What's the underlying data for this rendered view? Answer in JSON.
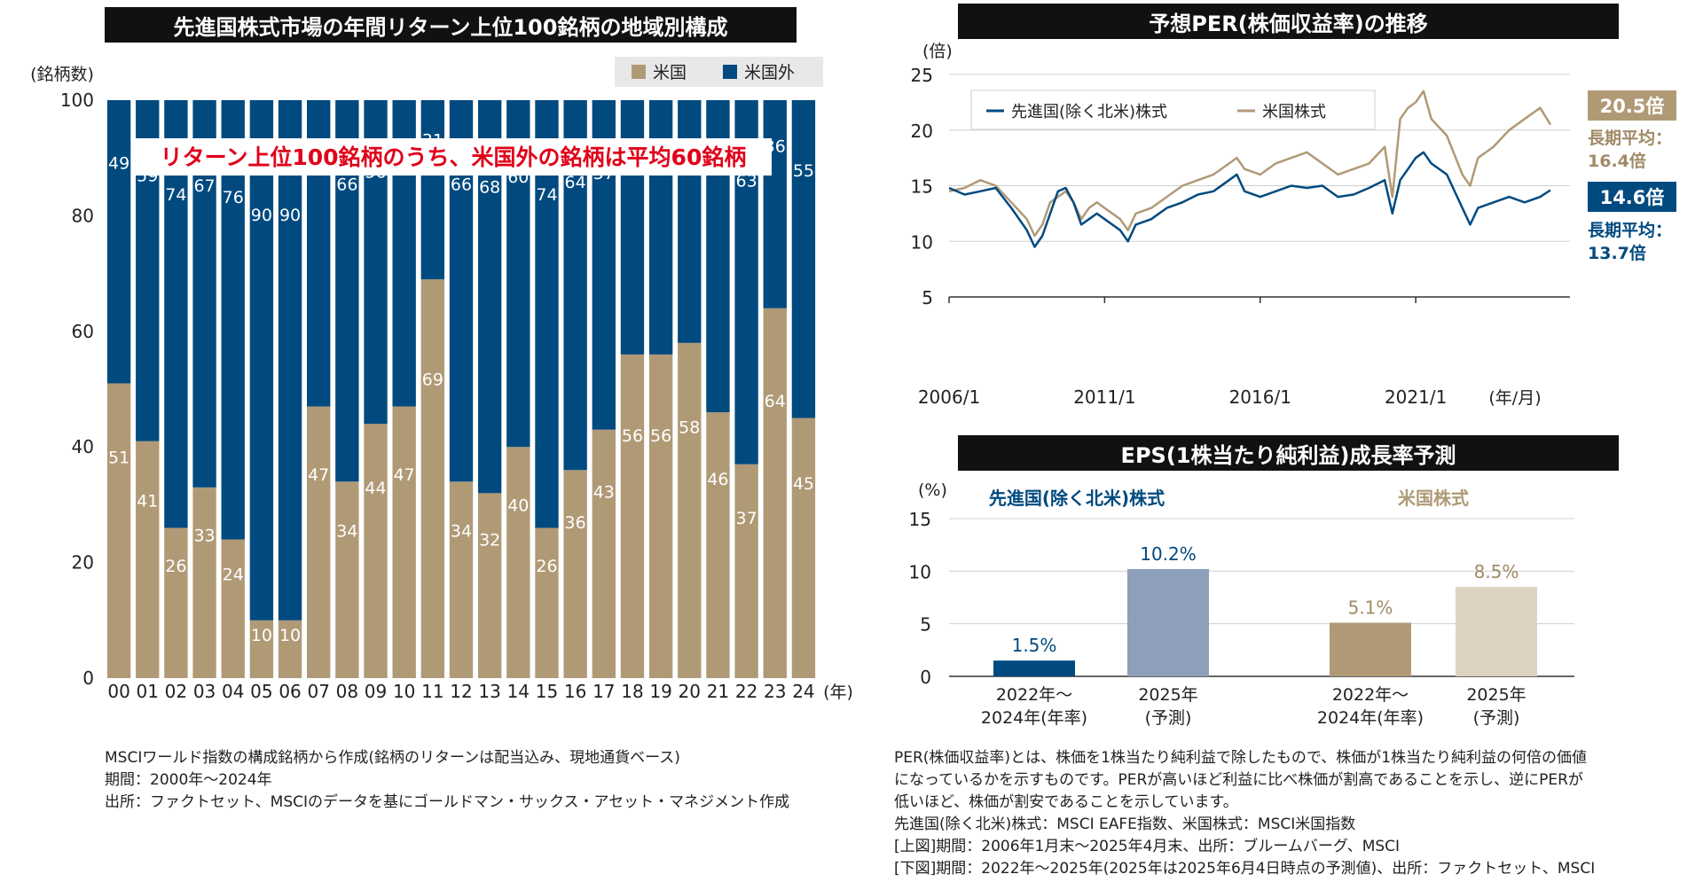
{
  "left": {
    "title": "先進国株式市場の年間リターン上位100銘柄の地域別構成",
    "y_unit": "(銘柄数)",
    "x_unit": "(年)",
    "annotation": "リターン上位100銘柄のうち、米国外の銘柄は平均60銘柄"
  },
  "per": {
    "title": "予想PER(株価収益率)の推移",
    "y_unit": "(倍)",
    "x_unit": "(年/月)",
    "us_badge": "20.5倍",
    "us_avg_label": "長期平均：",
    "us_avg_value": "16.4倍",
    "dev_badge": "14.6倍",
    "dev_avg_label": "長期平均：",
    "dev_avg_value": "13.7倍"
  },
  "eps": {
    "title": "EPS(1株当たり純利益)成長率予測",
    "y_unit": "(%)",
    "group1": "先進国(除く北米)株式",
    "group2": "米国株式",
    "cat1_line1": "2022年〜",
    "cat1_line2": "2024年(年率)",
    "cat2_line1": "2025年",
    "cat2_line2": "(予測)"
  },
  "notes_left": [
    "MSCIワールド指数の構成銘柄から作成(銘柄のリターンは配当込み、現地通貨ベース)",
    "期間：2000年〜2024年",
    "出所：ファクトセット、MSCIのデータを基にゴールドマン・サックス・アセット・マネジメント作成"
  ],
  "notes_right": [
    "PER(株価収益率)とは、株価を1株当たり純利益で除したもので、株価が1株当たり純利益の何倍の価値",
    "になっているかを示すものです。PERが高いほど利益に比べ株価が割高であることを示し、逆にPERが",
    "低いほど、株価が割安であることを示しています。",
    "先進国(除く北米)株式：MSCI EAFE指数、米国株式：MSCI米国指数",
    "[上図]期間：2006年1月末〜2025年4月末、出所：ブルームバーグ、MSCI",
    "[下図]期間：2022年〜2025年(2025年は2025年6月4日時点の予測値)、出所：ファクトセット、MSCI"
  ],
  "colors": {
    "us": "#b09a76",
    "non_us": "#004a7f",
    "annotation_red": "#e0001a",
    "eps_dev_2025": "#8e9fba",
    "eps_us_2025": "#dcd3c1"
  },
  "chart_data": [
    {
      "type": "bar",
      "stacked": true,
      "title": "先進国株式市場の年間リターン上位100銘柄の地域別構成",
      "ylabel": "(銘柄数)",
      "xlabel": "(年)",
      "ylim": [
        0,
        100
      ],
      "yticks": [
        0,
        20,
        40,
        60,
        80,
        100
      ],
      "categories": [
        "00",
        "01",
        "02",
        "03",
        "04",
        "05",
        "06",
        "07",
        "08",
        "09",
        "10",
        "11",
        "12",
        "13",
        "14",
        "15",
        "16",
        "17",
        "18",
        "19",
        "20",
        "21",
        "22",
        "23",
        "24"
      ],
      "series": [
        {
          "name": "米国",
          "values": [
            51,
            41,
            26,
            33,
            24,
            10,
            10,
            47,
            34,
            44,
            47,
            69,
            34,
            32,
            40,
            26,
            36,
            43,
            56,
            56,
            58,
            46,
            37,
            64,
            45
          ]
        },
        {
          "name": "米国外",
          "values": [
            49,
            59,
            74,
            67,
            76,
            90,
            90,
            53,
            66,
            56,
            53,
            31,
            66,
            68,
            60,
            74,
            64,
            57,
            44,
            44,
            42,
            54,
            63,
            36,
            55
          ]
        }
      ],
      "legend": "top-right"
    },
    {
      "type": "line",
      "title": "予想PER(株価収益率)の推移",
      "ylabel": "(倍)",
      "xlabel": "(年/月)",
      "ylim": [
        5,
        25
      ],
      "yticks": [
        5,
        10,
        15,
        20,
        25
      ],
      "xlim": [
        2006.0,
        2025.33
      ],
      "xticks": [
        2006,
        2011,
        2016,
        2021
      ],
      "xtick_labels": [
        "2006/1",
        "2011/1",
        "2016/1",
        "2021/1"
      ],
      "legend": "top-left",
      "series": [
        {
          "name": "先進国(除く北米)株式",
          "x": [
            2006.0,
            2006.5,
            2007.0,
            2007.5,
            2008.0,
            2008.5,
            2008.75,
            2009.0,
            2009.25,
            2009.5,
            2009.75,
            2010.0,
            2010.25,
            2010.5,
            2010.75,
            2011.0,
            2011.5,
            2011.75,
            2012.0,
            2012.5,
            2013.0,
            2013.5,
            2014.0,
            2014.5,
            2015.0,
            2015.25,
            2015.5,
            2016.0,
            2016.5,
            2017.0,
            2017.5,
            2018.0,
            2018.5,
            2019.0,
            2019.5,
            2020.0,
            2020.25,
            2020.5,
            2020.75,
            2021.0,
            2021.25,
            2021.5,
            2022.0,
            2022.5,
            2022.75,
            2023.0,
            2023.5,
            2024.0,
            2024.5,
            2025.0,
            2025.33
          ],
          "y": [
            14.8,
            14.2,
            14.5,
            14.8,
            13.0,
            11.0,
            9.5,
            10.5,
            12.5,
            14.5,
            14.8,
            13.5,
            11.5,
            12.0,
            12.5,
            12.0,
            11.0,
            10.0,
            11.5,
            12.0,
            13.0,
            13.5,
            14.2,
            14.5,
            15.5,
            16.0,
            14.5,
            14.0,
            14.5,
            15.0,
            14.8,
            15.0,
            14.0,
            14.2,
            14.8,
            15.5,
            12.5,
            15.5,
            16.5,
            17.5,
            18.0,
            17.0,
            16.0,
            13.0,
            11.5,
            13.0,
            13.5,
            14.0,
            13.5,
            14.0,
            14.6
          ]
        },
        {
          "name": "米国株式",
          "x": [
            2006.0,
            2006.5,
            2007.0,
            2007.5,
            2008.0,
            2008.5,
            2008.75,
            2009.0,
            2009.25,
            2009.5,
            2009.75,
            2010.0,
            2010.25,
            2010.5,
            2010.75,
            2011.0,
            2011.5,
            2011.75,
            2012.0,
            2012.5,
            2013.0,
            2013.5,
            2014.0,
            2014.5,
            2015.0,
            2015.25,
            2015.5,
            2016.0,
            2016.5,
            2017.0,
            2017.5,
            2018.0,
            2018.5,
            2019.0,
            2019.5,
            2020.0,
            2020.25,
            2020.5,
            2020.75,
            2021.0,
            2021.25,
            2021.5,
            2022.0,
            2022.5,
            2022.75,
            2023.0,
            2023.5,
            2024.0,
            2024.5,
            2025.0,
            2025.33
          ],
          "y": [
            14.5,
            14.8,
            15.5,
            15.0,
            13.5,
            12.0,
            10.5,
            11.5,
            13.5,
            14.0,
            14.5,
            13.5,
            12.0,
            13.0,
            13.5,
            13.0,
            12.0,
            11.0,
            12.5,
            13.0,
            14.0,
            15.0,
            15.5,
            16.0,
            17.0,
            17.5,
            16.5,
            16.0,
            17.0,
            17.5,
            18.0,
            17.0,
            16.0,
            16.5,
            17.0,
            18.5,
            14.0,
            21.0,
            22.0,
            22.5,
            23.5,
            21.0,
            19.5,
            16.0,
            15.0,
            17.5,
            18.5,
            20.0,
            21.0,
            22.0,
            20.5
          ]
        }
      ],
      "end_values": {
        "先進国(除く北米)株式": 14.6,
        "米国株式": 20.5
      },
      "long_term_average": {
        "先進国(除く北米)株式": 13.7,
        "米国株式": 16.4
      }
    },
    {
      "type": "bar",
      "title": "EPS(1株当たり純利益)成長率予測",
      "ylabel": "(%)",
      "ylim": [
        0,
        15
      ],
      "yticks": [
        0,
        5,
        10,
        15
      ],
      "groups": [
        {
          "name": "先進国(除く北米)株式",
          "categories": [
            "2022年〜2024年(年率)",
            "2025年(予測)"
          ],
          "values": [
            1.5,
            10.2
          ],
          "labels": [
            "1.5%",
            "10.2%"
          ]
        },
        {
          "name": "米国株式",
          "categories": [
            "2022年〜2024年(年率)",
            "2025年(予測)"
          ],
          "values": [
            5.1,
            8.5
          ],
          "labels": [
            "5.1%",
            "8.5%"
          ]
        }
      ]
    }
  ]
}
